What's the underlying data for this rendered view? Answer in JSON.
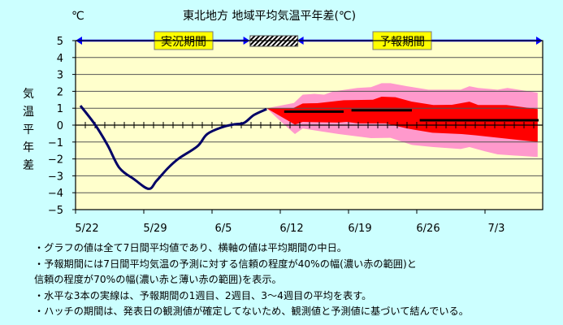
{
  "chart_data": {
    "type": "area",
    "title": "東北地方  地域平均気温平年差(℃)",
    "unit_label": "℃",
    "ylabel": "気温平年差",
    "ylim": [
      -5,
      5
    ],
    "yticks": [
      5,
      4,
      3,
      2,
      1,
      0,
      -1,
      -2,
      -3,
      -4,
      -5
    ],
    "xlim_days_from_5_22": [
      0,
      48
    ],
    "xticks": [
      {
        "day": 0,
        "label": "5/22"
      },
      {
        "day": 7,
        "label": "5/29"
      },
      {
        "day": 14,
        "label": "6/5"
      },
      {
        "day": 21,
        "label": "6/12"
      },
      {
        "day": 28,
        "label": "6/19"
      },
      {
        "day": 35,
        "label": "6/26"
      },
      {
        "day": 42,
        "label": "7/3"
      }
    ],
    "periods": {
      "observed": {
        "label": "実況期間",
        "from": 0,
        "to": 17.8
      },
      "hatch": {
        "from": 17.9,
        "to": 22.8
      },
      "forecast": {
        "label": "予報期間",
        "from": 22.8,
        "to": 48
      }
    },
    "observed_series": {
      "name": "観測値 (7日間平均)",
      "color": "#000066",
      "points": [
        [
          0.5,
          1.15
        ],
        [
          2,
          0.03
        ],
        [
          3.3,
          -1.2
        ],
        [
          4.5,
          -2.53
        ],
        [
          6,
          -3.2
        ],
        [
          7.5,
          -3.77
        ],
        [
          8.3,
          -3.3
        ],
        [
          9.5,
          -2.53
        ],
        [
          10.6,
          -1.97
        ],
        [
          12.5,
          -1.25
        ],
        [
          13.5,
          -0.53
        ],
        [
          15,
          -0.13
        ],
        [
          16.3,
          0.05
        ],
        [
          17.3,
          0.14
        ],
        [
          18.3,
          0.6
        ],
        [
          19.6,
          0.95
        ]
      ]
    },
    "band_70": {
      "name": "信頼度70%の幅",
      "color": "#ff99cc",
      "upper": [
        [
          19.6,
          1.0
        ],
        [
          22.4,
          1.31
        ],
        [
          23.3,
          1.8
        ],
        [
          24.5,
          1.85
        ],
        [
          25.5,
          1.8
        ],
        [
          26.4,
          1.99
        ],
        [
          28.9,
          2.2
        ],
        [
          30.3,
          2.25
        ],
        [
          31.4,
          2.48
        ],
        [
          32.3,
          2.48
        ],
        [
          34,
          2.3
        ],
        [
          36.2,
          2.1
        ],
        [
          39.5,
          2.1
        ],
        [
          40.4,
          2.3
        ],
        [
          41.3,
          2.2
        ],
        [
          43.3,
          2.1
        ],
        [
          44.3,
          2.2
        ],
        [
          47.4,
          1.92
        ]
      ],
      "lower": [
        [
          19.6,
          1.0
        ],
        [
          20.8,
          0.35
        ],
        [
          22.5,
          -0.53
        ],
        [
          23.3,
          -0.2
        ],
        [
          27,
          -0.53
        ],
        [
          30.3,
          -0.77
        ],
        [
          32.3,
          -0.75
        ],
        [
          34.5,
          -1.17
        ],
        [
          36.7,
          -1.3
        ],
        [
          39.5,
          -1.41
        ],
        [
          40.4,
          -1.3
        ],
        [
          42,
          -1.55
        ],
        [
          43.3,
          -1.73
        ],
        [
          47.4,
          -1.89
        ]
      ]
    },
    "band_40": {
      "name": "信頼度40%の幅",
      "color": "#ff0000",
      "upper": [
        [
          19.6,
          1.0
        ],
        [
          22.3,
          1.0
        ],
        [
          23.3,
          1.28
        ],
        [
          24.8,
          1.3
        ],
        [
          27.5,
          1.47
        ],
        [
          30.5,
          1.5
        ],
        [
          31.4,
          1.68
        ],
        [
          32.8,
          1.65
        ],
        [
          34.5,
          1.39
        ],
        [
          36.7,
          1.19
        ],
        [
          38.6,
          1.2
        ],
        [
          40.4,
          1.39
        ],
        [
          41.3,
          1.19
        ],
        [
          44.2,
          1.19
        ],
        [
          47.4,
          0.95
        ]
      ],
      "lower": [
        [
          19.6,
          1.0
        ],
        [
          22.5,
          0.03
        ],
        [
          23.3,
          0.19
        ],
        [
          27,
          0.15
        ],
        [
          27.8,
          0.19
        ],
        [
          29,
          0.1
        ],
        [
          31.8,
          0.1
        ],
        [
          34,
          -0.2
        ],
        [
          36.6,
          -0.45
        ],
        [
          39.6,
          -0.53
        ],
        [
          41,
          -0.6
        ],
        [
          47.4,
          -1.0
        ]
      ]
    },
    "weekly_means": [
      {
        "name": "1週目",
        "from": 21.4,
        "to": 27.5,
        "value": 0.8
      },
      {
        "name": "2週目",
        "from": 28.3,
        "to": 34.5,
        "value": 0.88
      },
      {
        "name": "3～4週目",
        "from": 35.3,
        "to": 47.5,
        "value": 0.29
      }
    ],
    "grid": true
  },
  "notes": [
    "・グラフの値は全て7日間平均値であり、横軸の値は平均期間の中日。",
    "・予報期間には7日間平均気温の予測に対する信頼の程度が40%の幅(濃い赤の範囲)と",
    "信頼の程度が70%の幅(濃い赤と薄い赤の範囲)を表示。",
    "・水平な3本の実線は、予報期間の1週目、2週目、3～4週目の平均を表す。",
    "・ハッチの期間は、発表日の観測値が確定してないため、観測値と予測値に基づいて結んでいる。"
  ]
}
